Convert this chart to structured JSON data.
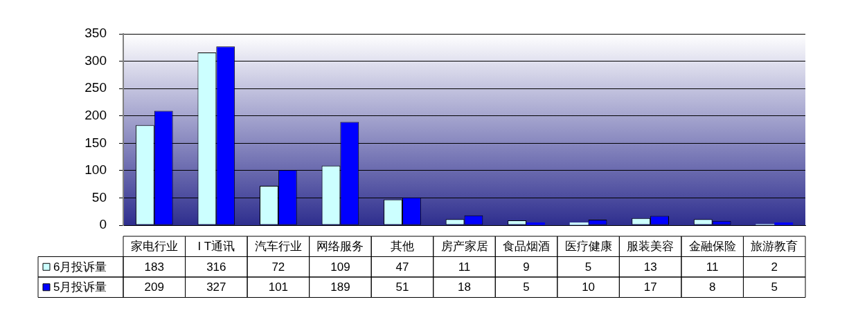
{
  "chart_data": {
    "type": "bar",
    "categories": [
      "家电行业",
      "I T通讯",
      "汽车行业",
      "网络服务",
      "其他",
      "房产家居",
      "食品烟酒",
      "医疗健康",
      "服装美容",
      "金融保险",
      "旅游教育"
    ],
    "series": [
      {
        "name": "6月投诉量",
        "color": "#ccffff",
        "values": [
          183,
          316,
          72,
          109,
          47,
          11,
          9,
          5,
          13,
          11,
          2
        ]
      },
      {
        "name": "5月投诉量",
        "color": "#0000ff",
        "values": [
          209,
          327,
          101,
          189,
          51,
          18,
          5,
          10,
          17,
          8,
          5
        ]
      }
    ],
    "ylim": [
      0,
      350
    ],
    "yticks": [
      0,
      50,
      100,
      150,
      200,
      250,
      300,
      350
    ],
    "grid": "y",
    "legend": "bottom left",
    "data_labels": true
  }
}
